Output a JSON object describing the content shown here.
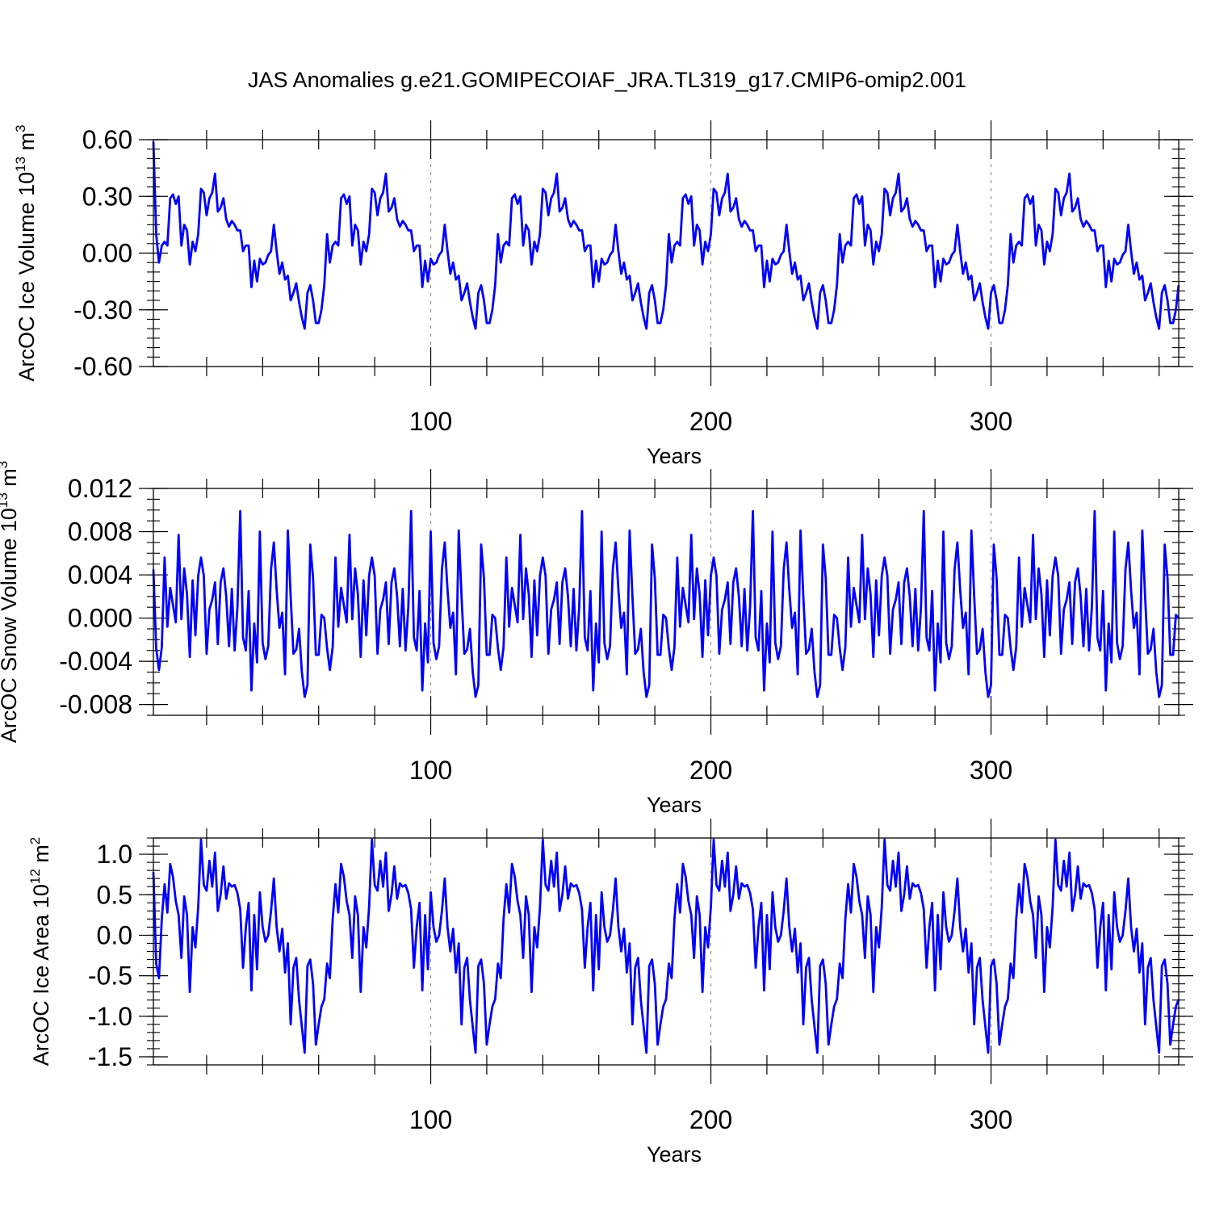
{
  "figure_title": "JAS Anomalies g.e21.GOMIPECOIAF_JRA.TL319_g17.CMIP6-omip2.001",
  "colors": {
    "line": "#0000ff",
    "axis": "#000000",
    "grid": "#999999"
  },
  "chart_data": [
    {
      "type": "line",
      "id": "ice-volume",
      "title": "",
      "xlabel": "Years",
      "ylabel_main": "ArcOC Ice Volume 10",
      "ylabel_exp": "13",
      "ylabel_unit": " m",
      "ylabel_unit_exp": "3",
      "xlim": [
        1,
        367
      ],
      "ylim": [
        -0.6,
        0.6
      ],
      "xticks": [
        100,
        200,
        300
      ],
      "xtick_labels": [
        "100",
        "200",
        "300"
      ],
      "yticks": [
        -0.6,
        -0.3,
        0.0,
        0.3,
        0.6
      ],
      "ytick_labels": [
        "-0.60",
        "-0.30",
        "0.00",
        "0.30",
        "0.60"
      ],
      "grid_x": [
        100,
        200,
        300
      ],
      "period": 61,
      "series": [
        {
          "name": "JAS anomaly",
          "cycle_values": [
            0.59,
            0.1,
            -0.05,
            0.04,
            0.06,
            0.04,
            0.29,
            0.31,
            0.26,
            0.3,
            0.04,
            0.15,
            0.12,
            -0.06,
            0.06,
            0.01,
            0.1,
            0.34,
            0.32,
            0.2,
            0.29,
            0.32,
            0.42,
            0.22,
            0.24,
            0.29,
            0.18,
            0.14,
            0.17,
            0.15,
            0.12,
            0.12,
            0.01,
            0.04,
            0.04,
            -0.18,
            -0.04,
            -0.15,
            -0.03,
            -0.06,
            -0.05,
            -0.01,
            0.01,
            0.15,
            0.01,
            -0.11,
            -0.05,
            -0.14,
            -0.12,
            -0.25,
            -0.21,
            -0.16,
            -0.26,
            -0.34,
            -0.4,
            -0.21,
            -0.17,
            -0.25,
            -0.37,
            -0.37,
            -0.3
          ],
          "cycle_end_values": [
            -0.3,
            -0.26,
            -0.29,
            -0.28,
            -0.1,
            -0.05,
            -0.06,
            0.22,
            0.25,
            0.2,
            0.25
          ],
          "continuation_start_values": [
            -0.17,
            -0.04,
            -0.09,
            -0.02,
            -0.05,
            -0.05
          ]
        }
      ]
    },
    {
      "type": "line",
      "id": "snow-volume",
      "title": "",
      "xlabel": "Years",
      "ylabel_main": "ArcOC Snow Volume 10",
      "ylabel_exp": "13",
      "ylabel_unit": " m",
      "ylabel_unit_exp": "3",
      "xlim": [
        1,
        367
      ],
      "ylim": [
        -0.009,
        0.012
      ],
      "xticks": [
        100,
        200,
        300
      ],
      "xtick_labels": [
        "100",
        "200",
        "300"
      ],
      "yticks": [
        -0.008,
        -0.004,
        0.0,
        0.004,
        0.008,
        0.012
      ],
      "ytick_labels": [
        "-0.008",
        "-0.004",
        "0.000",
        "0.004",
        "0.008",
        "0.012"
      ],
      "grid_x": [
        100,
        200,
        300
      ],
      "period": 61,
      "series": [
        {
          "name": "JAS anomaly",
          "cycle_values": [
            0.0045,
            -0.0028,
            -0.0048,
            -0.0027,
            0.0056,
            -0.0008,
            0.0028,
            0.0012,
            -0.0004,
            0.0077,
            -0.0001,
            0.0046,
            0.0022,
            -0.0036,
            0.0035,
            -0.0016,
            0.0039,
            0.0056,
            0.0039,
            -0.0033,
            0.0008,
            0.0017,
            0.0033,
            -0.0024,
            0.0033,
            0.0046,
            0.002,
            -0.0026,
            0.0027,
            -0.003,
            0.001,
            0.0099,
            -0.0018,
            -0.003,
            0.0025,
            -0.0067,
            -0.0005,
            -0.0041,
            0.008,
            -0.0023,
            -0.0038,
            -0.0026,
            0.0045,
            0.007,
            0.0026,
            -0.0009,
            0.0005,
            -0.0052,
            0.0081,
            0.002,
            -0.0033,
            -0.0029,
            -0.001,
            -0.005,
            -0.0073,
            -0.0062,
            0.0068,
            0.0037,
            -0.0034,
            -0.0034,
            0.0003
          ],
          "continuation_start_values": [
            0.0,
            0.0051
          ]
        }
      ]
    },
    {
      "type": "line",
      "id": "ice-area",
      "title": "",
      "xlabel": "Years",
      "ylabel_main": "ArcOC Ice Area 10",
      "ylabel_exp": "12",
      "ylabel_unit": " m",
      "ylabel_unit_exp": "2",
      "xlim": [
        1,
        367
      ],
      "ylim": [
        -1.6,
        1.2
      ],
      "xticks": [
        100,
        200,
        300
      ],
      "xtick_labels": [
        "100",
        "200",
        "300"
      ],
      "yticks": [
        -1.5,
        -1.0,
        -0.5,
        0.0,
        0.5,
        1.0
      ],
      "ytick_labels": [
        "-1.5",
        "-1.0",
        "-0.5",
        "0.0",
        "0.5",
        "1.0"
      ],
      "grid_x": [
        100,
        200,
        300
      ],
      "period": 61,
      "series": [
        {
          "name": "JAS anomaly",
          "cycle_values": [
            0.78,
            -0.35,
            -0.53,
            0.2,
            0.63,
            0.28,
            0.88,
            0.72,
            0.42,
            0.25,
            -0.28,
            0.48,
            0.25,
            -0.7,
            0.1,
            -0.15,
            0.35,
            1.18,
            0.62,
            0.55,
            0.92,
            0.6,
            1.02,
            0.3,
            0.5,
            0.85,
            0.45,
            0.64,
            0.6,
            0.62,
            0.52,
            0.32,
            -0.4,
            0.1,
            0.4,
            -0.68,
            0.25,
            -0.42,
            0.53,
            0.1,
            -0.08,
            0.0,
            0.3,
            0.7,
            0.1,
            -0.2,
            0.08,
            -0.46,
            -0.1,
            -1.1,
            -0.4,
            -0.28,
            -0.8,
            -1.13,
            -1.45,
            -0.38,
            -0.3,
            -0.6,
            -1.35,
            -1.1,
            -0.88
          ],
          "cycle_end_values": [
            -0.32,
            -1.05,
            -1.0,
            0.0,
            0.5,
            0.12,
            0.82,
            0.68,
            0.38,
            0.25,
            0.0
          ],
          "continuation_start_values": [
            -0.79,
            0.1,
            -0.22,
            0.1,
            0.45,
            0.38
          ]
        }
      ]
    }
  ]
}
